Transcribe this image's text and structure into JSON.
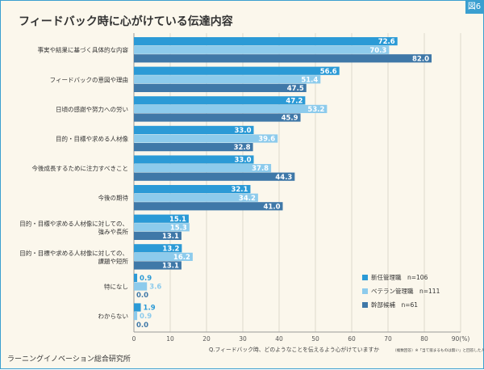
{
  "figure_badge": "図6",
  "title": "フィードバック時に心がけている伝達内容",
  "source": "ラーニングイノベーション総合研究所",
  "x_axis_note": "Q.フィードバック時、どのようなことを伝えるよう心がけていますか",
  "x_axis_note_sub": "（複数回答）※「当て嵌まるものは無い」と回答した人は除く",
  "colors": {
    "frame": "#3a9fd0",
    "background": "#fbf7ec",
    "series": [
      "#2b9ad6",
      "#8dcbec",
      "#3f78a8"
    ]
  },
  "chart_data": {
    "type": "bar",
    "orientation": "horizontal",
    "categories": [
      "事実や結果に基づく具体的な内容",
      "フィードバックの意図や理由",
      "日頃の感謝や努力への労い",
      "目的・目標や求める人材像",
      "今後成長するために注力すべきこと",
      "今後の期待",
      "目的・目標や求める人材像に対しての、強みや長所",
      "目的・目標や求める人材像に対しての、課題や短所",
      "特になし",
      "わからない"
    ],
    "series": [
      {
        "name": "新任管理職　n=106",
        "values": [
          72.6,
          56.6,
          47.2,
          33.0,
          33.0,
          32.1,
          15.1,
          13.2,
          0.9,
          1.9
        ]
      },
      {
        "name": "ベテラン管理職　n=111",
        "values": [
          70.3,
          51.4,
          53.2,
          39.6,
          37.8,
          34.2,
          15.3,
          16.2,
          3.6,
          0.9
        ]
      },
      {
        "name": "幹部候補　n=61",
        "values": [
          82.0,
          47.5,
          45.9,
          32.8,
          44.3,
          41.0,
          13.1,
          13.1,
          0.0,
          0.0
        ]
      }
    ],
    "xlim": [
      0,
      90
    ],
    "xticks": [
      "0",
      "10",
      "20",
      "30",
      "40",
      "50",
      "60",
      "70",
      "80",
      "90(%)"
    ],
    "grid": true,
    "legend_position": "bottom-right"
  }
}
